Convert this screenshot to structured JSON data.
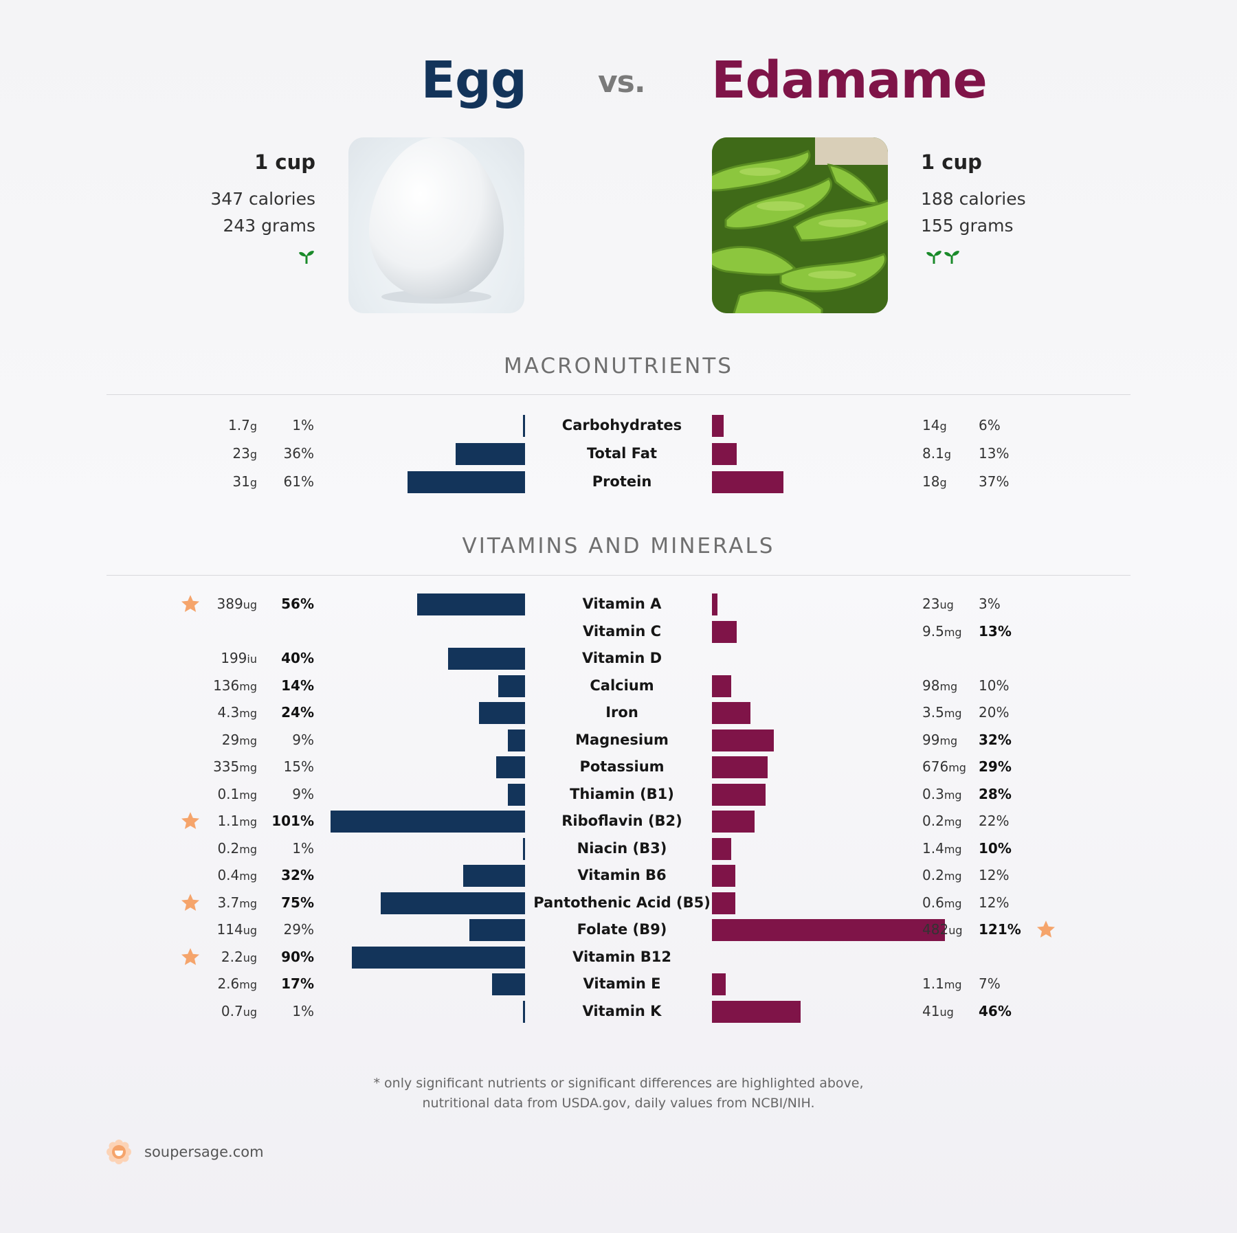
{
  "header": {
    "left_title": "Egg",
    "vs": "vs.",
    "right_title": "Edamame"
  },
  "left_food": {
    "serving": "1 cup",
    "calories": "347 calories",
    "weight": "243 grams",
    "color": "#13345a",
    "leaf_count": 1,
    "photo": "egg-photo"
  },
  "right_food": {
    "serving": "1 cup",
    "calories": "188 calories",
    "weight": "155 grams",
    "color": "#7f1448",
    "leaf_count": 2,
    "photo": "edamame-photo"
  },
  "sections": {
    "macros_title": "MACRONUTRIENTS",
    "vitamins_title": "VITAMINS AND MINERALS"
  },
  "footnote": {
    "line1": "* only significant nutrients or significant differences are highlighted above,",
    "line2": "nutritional data from USDA.gov, daily values from NCBI/NIH."
  },
  "brand": {
    "name": "soupersage.com",
    "accent": "#f5a46b"
  },
  "chart_data": {
    "type": "bar",
    "orientation": "horizontal-diverging",
    "series": [
      {
        "name": "Egg",
        "color": "#13345a"
      },
      {
        "name": "Edamame",
        "color": "#7f1448"
      }
    ],
    "macronutrients": [
      {
        "name": "Carbohydrates",
        "left": {
          "amount": "1.7",
          "unit": "g",
          "pct": "1%",
          "value": 1,
          "bold": false,
          "star": false
        },
        "right": {
          "amount": "14",
          "unit": "g",
          "pct": "6%",
          "value": 6,
          "bold": false,
          "star": false
        }
      },
      {
        "name": "Total Fat",
        "left": {
          "amount": "23",
          "unit": "g",
          "pct": "36%",
          "value": 36,
          "bold": false,
          "star": false
        },
        "right": {
          "amount": "8.1",
          "unit": "g",
          "pct": "13%",
          "value": 13,
          "bold": false,
          "star": false
        }
      },
      {
        "name": "Protein",
        "left": {
          "amount": "31",
          "unit": "g",
          "pct": "61%",
          "value": 61,
          "bold": false,
          "star": false
        },
        "right": {
          "amount": "18",
          "unit": "g",
          "pct": "37%",
          "value": 37,
          "bold": false,
          "star": false
        }
      }
    ],
    "vitamins": [
      {
        "name": "Vitamin A",
        "left": {
          "amount": "389",
          "unit": "ug",
          "pct": "56%",
          "value": 56,
          "bold": true,
          "star": true
        },
        "right": {
          "amount": "23",
          "unit": "ug",
          "pct": "3%",
          "value": 3,
          "bold": false,
          "star": false
        }
      },
      {
        "name": "Vitamin C",
        "left": null,
        "right": {
          "amount": "9.5",
          "unit": "mg",
          "pct": "13%",
          "value": 13,
          "bold": true,
          "star": false
        }
      },
      {
        "name": "Vitamin D",
        "left": {
          "amount": "199",
          "unit": "iu",
          "pct": "40%",
          "value": 40,
          "bold": true,
          "star": false
        },
        "right": null
      },
      {
        "name": "Calcium",
        "left": {
          "amount": "136",
          "unit": "mg",
          "pct": "14%",
          "value": 14,
          "bold": true,
          "star": false
        },
        "right": {
          "amount": "98",
          "unit": "mg",
          "pct": "10%",
          "value": 10,
          "bold": false,
          "star": false
        }
      },
      {
        "name": "Iron",
        "left": {
          "amount": "4.3",
          "unit": "mg",
          "pct": "24%",
          "value": 24,
          "bold": true,
          "star": false
        },
        "right": {
          "amount": "3.5",
          "unit": "mg",
          "pct": "20%",
          "value": 20,
          "bold": false,
          "star": false
        }
      },
      {
        "name": "Magnesium",
        "left": {
          "amount": "29",
          "unit": "mg",
          "pct": "9%",
          "value": 9,
          "bold": false,
          "star": false
        },
        "right": {
          "amount": "99",
          "unit": "mg",
          "pct": "32%",
          "value": 32,
          "bold": true,
          "star": false
        }
      },
      {
        "name": "Potassium",
        "left": {
          "amount": "335",
          "unit": "mg",
          "pct": "15%",
          "value": 15,
          "bold": false,
          "star": false
        },
        "right": {
          "amount": "676",
          "unit": "mg",
          "pct": "29%",
          "value": 29,
          "bold": true,
          "star": false
        }
      },
      {
        "name": "Thiamin (B1)",
        "left": {
          "amount": "0.1",
          "unit": "mg",
          "pct": "9%",
          "value": 9,
          "bold": false,
          "star": false
        },
        "right": {
          "amount": "0.3",
          "unit": "mg",
          "pct": "28%",
          "value": 28,
          "bold": true,
          "star": false
        }
      },
      {
        "name": "Riboflavin (B2)",
        "left": {
          "amount": "1.1",
          "unit": "mg",
          "pct": "101%",
          "value": 101,
          "bold": true,
          "star": true
        },
        "right": {
          "amount": "0.2",
          "unit": "mg",
          "pct": "22%",
          "value": 22,
          "bold": false,
          "star": false
        }
      },
      {
        "name": "Niacin (B3)",
        "left": {
          "amount": "0.2",
          "unit": "mg",
          "pct": "1%",
          "value": 1,
          "bold": false,
          "star": false
        },
        "right": {
          "amount": "1.4",
          "unit": "mg",
          "pct": "10%",
          "value": 10,
          "bold": true,
          "star": false
        }
      },
      {
        "name": "Vitamin B6",
        "left": {
          "amount": "0.4",
          "unit": "mg",
          "pct": "32%",
          "value": 32,
          "bold": true,
          "star": false
        },
        "right": {
          "amount": "0.2",
          "unit": "mg",
          "pct": "12%",
          "value": 12,
          "bold": false,
          "star": false
        }
      },
      {
        "name": "Pantothenic Acid (B5)",
        "left": {
          "amount": "3.7",
          "unit": "mg",
          "pct": "75%",
          "value": 75,
          "bold": true,
          "star": true
        },
        "right": {
          "amount": "0.6",
          "unit": "mg",
          "pct": "12%",
          "value": 12,
          "bold": false,
          "star": false
        }
      },
      {
        "name": "Folate (B9)",
        "left": {
          "amount": "114",
          "unit": "ug",
          "pct": "29%",
          "value": 29,
          "bold": false,
          "star": false
        },
        "right": {
          "amount": "482",
          "unit": "ug",
          "pct": "121%",
          "value": 121,
          "bold": true,
          "star": true
        }
      },
      {
        "name": "Vitamin B12",
        "left": {
          "amount": "2.2",
          "unit": "ug",
          "pct": "90%",
          "value": 90,
          "bold": true,
          "star": true
        },
        "right": null
      },
      {
        "name": "Vitamin E",
        "left": {
          "amount": "2.6",
          "unit": "mg",
          "pct": "17%",
          "value": 17,
          "bold": true,
          "star": false
        },
        "right": {
          "amount": "1.1",
          "unit": "mg",
          "pct": "7%",
          "value": 7,
          "bold": false,
          "star": false
        }
      },
      {
        "name": "Vitamin K",
        "left": {
          "amount": "0.7",
          "unit": "ug",
          "pct": "1%",
          "value": 1,
          "bold": false,
          "star": false
        },
        "right": {
          "amount": "41",
          "unit": "ug",
          "pct": "46%",
          "value": 46,
          "bold": true,
          "star": false
        }
      }
    ]
  }
}
